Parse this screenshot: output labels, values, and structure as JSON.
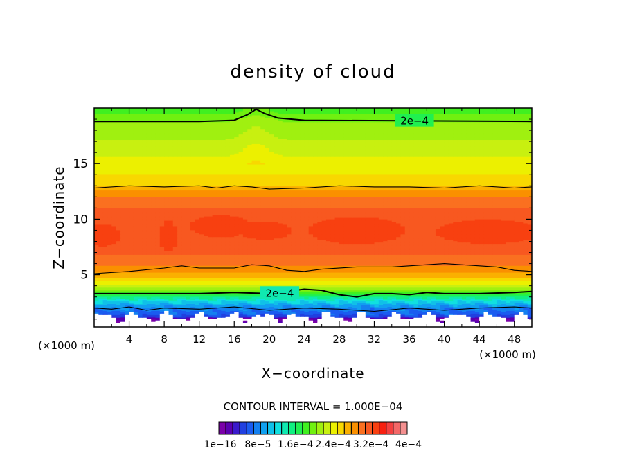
{
  "chart_data": {
    "type": "heatmap",
    "title": "density of cloud",
    "xlabel": "X−coordinate",
    "ylabel": "Z−coordinate",
    "x_unit_left": "(×1000 m)",
    "x_unit_right": "(×1000 m)",
    "xlim": [
      0,
      50
    ],
    "ylim": [
      0.3,
      20
    ],
    "xticks": [
      4,
      8,
      12,
      16,
      20,
      24,
      28,
      32,
      36,
      40,
      44,
      48
    ],
    "yticks": [
      5,
      10,
      15
    ],
    "contour_interval_label": "CONTOUR INTERVAL = 1.000E−04",
    "contour_labels": [
      {
        "text": "2e−4",
        "x": 36.6,
        "y": 18.9
      },
      {
        "text": "2e−4",
        "x": 21.2,
        "y": 3.4
      }
    ],
    "colorbar": {
      "colors": [
        "#7a00a8",
        "#5a00b0",
        "#3a1acc",
        "#2040e0",
        "#1a5cf0",
        "#1480f0",
        "#10a0f0",
        "#10c0e8",
        "#10e0e0",
        "#10e8b0",
        "#10f080",
        "#20f050",
        "#40f020",
        "#70f010",
        "#a0f010",
        "#c8f010",
        "#ecf000",
        "#f8d800",
        "#fab000",
        "#fa9000",
        "#fa7020",
        "#f85820",
        "#f84010",
        "#f82010",
        "#f44040",
        "#f46868",
        "#f49090"
      ],
      "tick_labels": [
        "1e−16",
        "8e−5",
        "1.6e−4",
        "2.4e−4",
        "3.2e−4",
        "4e−4"
      ]
    },
    "profile_z": [
      0.3,
      1.0,
      1.3,
      1.6,
      1.9,
      2.2,
      2.5,
      2.8,
      3.1,
      3.5,
      4.0,
      4.5,
      5.0,
      5.5,
      6.0,
      6.8,
      7.6,
      10.0,
      11.5,
      12.5,
      13.0,
      13.5,
      14.0,
      14.5,
      15.0,
      15.5,
      16.0,
      16.5,
      17.0,
      17.5,
      18.0,
      18.5,
      19.0,
      19.6,
      20.0
    ],
    "profile_value": [
      0.0,
      3e-06,
      5e-05,
      6.5e-05,
      7.5e-05,
      9e-05,
      0.00011,
      0.00013,
      0.00016,
      0.000195,
      0.00023,
      0.000255,
      0.00028,
      0.00029,
      0.000305,
      0.000315,
      0.000325,
      0.000325,
      0.00031,
      0.00029,
      0.00027,
      0.00026,
      0.000255,
      0.00025,
      0.000245,
      0.00024,
      0.000235,
      0.00023,
      0.000225,
      0.00022,
      0.000215,
      0.00021,
      0.000205,
      0.00019,
      0.000185
    ],
    "max_patches": [
      {
        "x": 1.0,
        "z": 8.6,
        "rx": 2.0,
        "rz": 1.0
      },
      {
        "x": 8.5,
        "z": 8.5,
        "rx": 1.0,
        "rz": 1.4
      },
      {
        "x": 14.5,
        "z": 9.4,
        "rx": 3.5,
        "rz": 1.0
      },
      {
        "x": 19.5,
        "z": 9.0,
        "rx": 3.0,
        "rz": 0.8
      },
      {
        "x": 30.0,
        "z": 9.0,
        "rx": 5.5,
        "rz": 1.2
      },
      {
        "x": 45.0,
        "z": 8.9,
        "rx": 6.0,
        "rz": 1.1
      }
    ],
    "contour_lines": [
      {
        "name": "top",
        "x": [
          0,
          12,
          16,
          17.5,
          18.5,
          19.5,
          21,
          24,
          50
        ],
        "y": [
          18.8,
          18.8,
          18.9,
          19.4,
          19.9,
          19.5,
          19.1,
          18.9,
          18.8
        ],
        "bold": true
      },
      {
        "name": "upper",
        "x": [
          0,
          4,
          8,
          12,
          14,
          16,
          18,
          20,
          24,
          28,
          32,
          36,
          40,
          44,
          48,
          50
        ],
        "y": [
          12.8,
          13.0,
          12.9,
          13.0,
          12.8,
          13.0,
          12.9,
          12.7,
          12.8,
          13.0,
          12.9,
          12.9,
          12.8,
          13.0,
          12.8,
          12.9
        ],
        "bold": false
      },
      {
        "name": "mid",
        "x": [
          0,
          4,
          8,
          10,
          12,
          16,
          18,
          20,
          22,
          24,
          26,
          30,
          34,
          38,
          40,
          44,
          46,
          48,
          50
        ],
        "y": [
          5.1,
          5.3,
          5.6,
          5.8,
          5.6,
          5.6,
          5.9,
          5.8,
          5.4,
          5.3,
          5.5,
          5.7,
          5.7,
          5.9,
          6.0,
          5.8,
          5.7,
          5.4,
          5.3
        ],
        "bold": false
      },
      {
        "name": "low",
        "x": [
          0,
          4,
          8,
          12,
          16,
          20,
          24,
          26,
          28,
          30,
          32,
          34,
          36,
          38,
          40,
          44,
          48,
          50
        ],
        "y": [
          3.3,
          3.3,
          3.3,
          3.3,
          3.4,
          3.3,
          3.7,
          3.6,
          3.2,
          3.0,
          3.3,
          3.3,
          3.2,
          3.4,
          3.3,
          3.3,
          3.4,
          3.5
        ],
        "bold": true
      },
      {
        "name": "bottom",
        "x": [
          0,
          2,
          4,
          6,
          8,
          12,
          16,
          20,
          24,
          28,
          32,
          36,
          40,
          44,
          48,
          50
        ],
        "y": [
          2.0,
          1.9,
          2.1,
          1.8,
          2.0,
          1.9,
          2.1,
          1.8,
          2.0,
          1.9,
          1.7,
          2.0,
          1.8,
          2.0,
          2.1,
          2.0
        ],
        "bold": false
      }
    ]
  }
}
